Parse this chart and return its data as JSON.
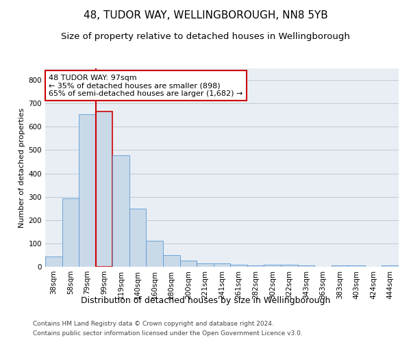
{
  "title": "48, TUDOR WAY, WELLINGBOROUGH, NN8 5YB",
  "subtitle": "Size of property relative to detached houses in Wellingborough",
  "xlabel": "Distribution of detached houses by size in Wellingborough",
  "ylabel": "Number of detached properties",
  "categories": [
    "38sqm",
    "58sqm",
    "79sqm",
    "99sqm",
    "119sqm",
    "140sqm",
    "160sqm",
    "180sqm",
    "200sqm",
    "221sqm",
    "241sqm",
    "261sqm",
    "282sqm",
    "302sqm",
    "322sqm",
    "343sqm",
    "363sqm",
    "383sqm",
    "403sqm",
    "424sqm",
    "444sqm"
  ],
  "values": [
    45,
    293,
    655,
    665,
    478,
    250,
    112,
    50,
    25,
    14,
    14,
    10,
    5,
    8,
    8,
    5,
    0,
    5,
    5,
    0,
    5
  ],
  "bar_color": "#c9d9e8",
  "bar_edge_color": "#5b9bd5",
  "highlight_bar_index": 3,
  "highlight_edge_color": "#cc0000",
  "vline_color": "#cc0000",
  "annotation_text": "48 TUDOR WAY: 97sqm\n← 35% of detached houses are smaller (898)\n65% of semi-detached houses are larger (1,682) →",
  "annotation_box_edge": "#cc0000",
  "ylim": [
    0,
    850
  ],
  "yticks": [
    0,
    100,
    200,
    300,
    400,
    500,
    600,
    700,
    800
  ],
  "grid_color": "#c0c8d8",
  "background_color": "#e8eef4",
  "footnote1": "Contains HM Land Registry data © Crown copyright and database right 2024.",
  "footnote2": "Contains public sector information licensed under the Open Government Licence v3.0.",
  "title_fontsize": 11,
  "subtitle_fontsize": 9.5,
  "xlabel_fontsize": 9,
  "ylabel_fontsize": 8,
  "tick_fontsize": 7.5,
  "annotation_fontsize": 8,
  "footnote_fontsize": 6.5
}
